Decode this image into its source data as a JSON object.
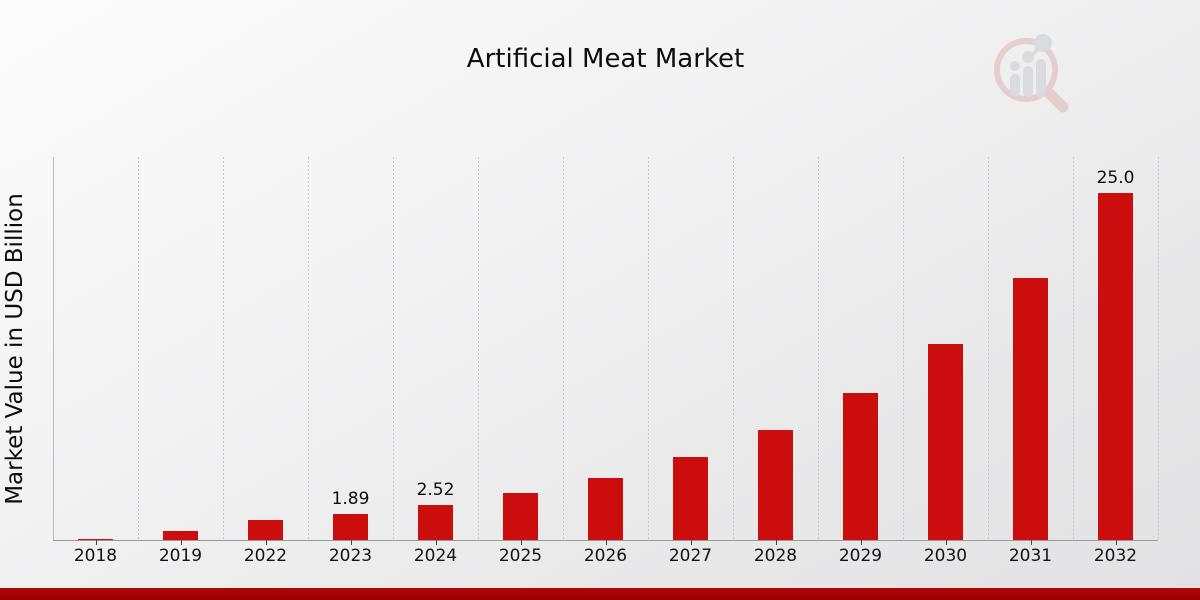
{
  "page": {
    "title": "Artificial Meat Market"
  },
  "colors": {
    "bar": "#cc0d0d",
    "grid": "#c7c7c8",
    "axis_line": "#9a9a9a",
    "footer_red": "#a30402",
    "background_light": "#fcfcfc",
    "background_dark": "#e2e2e4",
    "text": "#0d0d0d",
    "logo_pink": "#dfb3b6",
    "logo_gray": "#c9ccd1"
  },
  "logo": {
    "name": "magnifier-bar-chart-watermark"
  },
  "chart_data": {
    "type": "bar",
    "title": "Artificial Meat Market",
    "xlabel": "",
    "ylabel": "Market Value in USD Billion",
    "categories": [
      "2018",
      "2019",
      "2022",
      "2023",
      "2024",
      "2025",
      "2026",
      "2027",
      "2028",
      "2029",
      "2030",
      "2031",
      "2032"
    ],
    "values": [
      0.1,
      0.65,
      1.42,
      1.89,
      2.52,
      3.36,
      4.48,
      5.97,
      7.96,
      10.61,
      14.15,
      18.86,
      25.0
    ],
    "data_labels": {
      "2023": "1.89",
      "2024": "2.52",
      "2032": "25.0"
    },
    "ylim": [
      0,
      27.6
    ],
    "grid": "vertical dashed lines at category boundaries",
    "legend": "none",
    "bar_color": "#cc0d0d"
  }
}
